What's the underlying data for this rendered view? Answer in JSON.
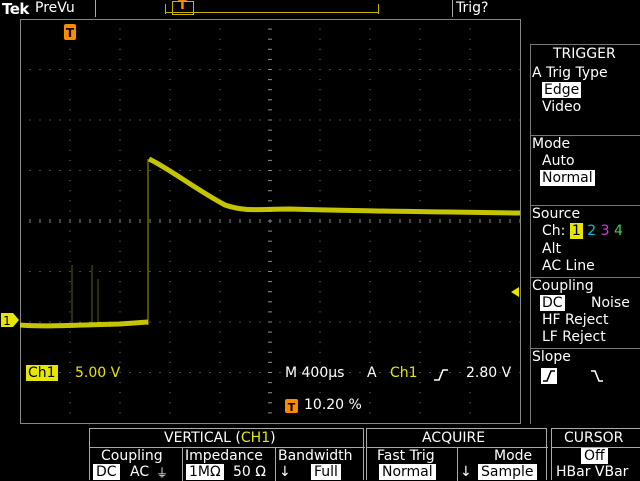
{
  "top": {
    "brand": "Tek",
    "acq_status": "PreVu",
    "trig_status": "Trig?"
  },
  "marker": {
    "trigger_glyph": "T",
    "ch1_glyph": "1"
  },
  "readouts": {
    "ch_label": "Ch1",
    "ch_scale": "5.00 V",
    "timebase": "M 400µs",
    "trig_a": "A",
    "trig_ch": "Ch1",
    "trig_level": "2.80 V",
    "trig_pos": "10.20 %"
  },
  "trigger_menu": {
    "title": "TRIGGER",
    "type_label": "A Trig Type",
    "type_options": [
      "Edge",
      "Video"
    ],
    "mode_label": "Mode",
    "mode_options": [
      "Auto",
      "Normal"
    ],
    "source_label": "Source",
    "source_ch_label": "Ch:",
    "source_channels": [
      "1",
      "2",
      "3",
      "4"
    ],
    "source_extra": [
      "Alt",
      "AC Line"
    ],
    "coupling_label": "Coupling",
    "coupling_options": [
      "DC",
      "Noise",
      "HF Reject",
      "LF Reject"
    ],
    "slope_label": "Slope"
  },
  "vertical_menu": {
    "title_prefix": "VERTICAL (",
    "title_ch": "CH1",
    "title_suffix": ")",
    "coupling_label": "Coupling",
    "coupling_dc": "DC",
    "coupling_ac": "AC",
    "coupling_gnd": "⏚",
    "impedance_label": "Impedance",
    "imp_1m": "1MΩ",
    "imp_50": "50 Ω",
    "bandwidth_label": "Bandwidth",
    "bandwidth_value": "Full"
  },
  "acquire_menu": {
    "title": "ACQUIRE",
    "fast_trig_label": "Fast Trig",
    "fast_trig_value": "Normal",
    "mode_label": "Mode",
    "mode_value": "Sample"
  },
  "cursor_menu": {
    "title": "CURSOR",
    "value": "Off",
    "options": "HBar VBar"
  },
  "colors": {
    "ch1": "#e6e600",
    "ch2": "#00c8c8",
    "ch3": "#d040d0",
    "ch4": "#40d040",
    "trigger_marker": "#ff8a00",
    "graticule": "#888888"
  }
}
